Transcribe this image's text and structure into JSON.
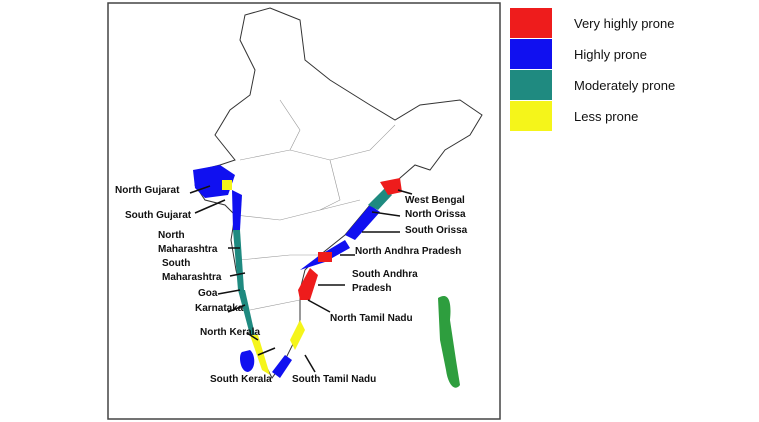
{
  "legend": [
    {
      "label": "Very highly prone",
      "color": "#ee1c1c"
    },
    {
      "label": "Highly prone",
      "color": "#1010f0"
    },
    {
      "label": "Moderately prone",
      "color": "#1f8a80"
    },
    {
      "label": "Less prone",
      "color": "#f5f51a"
    }
  ],
  "labels": [
    {
      "lines": [
        "North Gujarat"
      ]
    },
    {
      "lines": [
        "South Gujarat"
      ]
    },
    {
      "lines": [
        "North",
        "Maharashtra"
      ]
    },
    {
      "lines": [
        "South",
        "Maharashtra"
      ]
    },
    {
      "lines": [
        "Goa"
      ]
    },
    {
      "lines": [
        "Karnataka"
      ]
    },
    {
      "lines": [
        "North Kerala"
      ]
    },
    {
      "lines": [
        "South Kerala"
      ]
    },
    {
      "lines": [
        "South Tamil Nadu"
      ]
    },
    {
      "lines": [
        "North Tamil Nadu"
      ]
    },
    {
      "lines": [
        "South Andhra",
        "Pradesh"
      ]
    },
    {
      "lines": [
        "North Andhra Pradesh"
      ]
    },
    {
      "lines": [
        "South Orissa"
      ]
    },
    {
      "lines": [
        "North Orissa"
      ]
    },
    {
      "lines": [
        "West Bengal"
      ]
    }
  ]
}
